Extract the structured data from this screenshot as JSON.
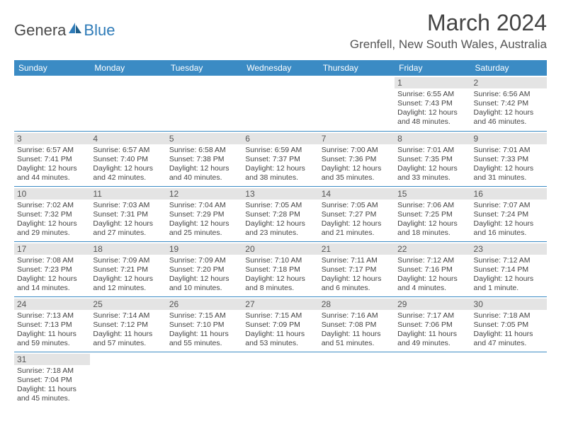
{
  "logo": {
    "text_general": "Genera",
    "text_blue": "Blue"
  },
  "title": "March 2024",
  "location": "Grenfell, New South Wales, Australia",
  "colors": {
    "header_bg": "#3b8bc4",
    "header_text": "#ffffff",
    "daynum_bg": "#e4e4e4",
    "row_border": "#3b8bc4",
    "logo_blue": "#2e7bb8"
  },
  "weekdays": [
    "Sunday",
    "Monday",
    "Tuesday",
    "Wednesday",
    "Thursday",
    "Friday",
    "Saturday"
  ],
  "weeks": [
    [
      null,
      null,
      null,
      null,
      null,
      {
        "n": "1",
        "sunrise": "Sunrise: 6:55 AM",
        "sunset": "Sunset: 7:43 PM",
        "daylight": "Daylight: 12 hours and 48 minutes."
      },
      {
        "n": "2",
        "sunrise": "Sunrise: 6:56 AM",
        "sunset": "Sunset: 7:42 PM",
        "daylight": "Daylight: 12 hours and 46 minutes."
      }
    ],
    [
      {
        "n": "3",
        "sunrise": "Sunrise: 6:57 AM",
        "sunset": "Sunset: 7:41 PM",
        "daylight": "Daylight: 12 hours and 44 minutes."
      },
      {
        "n": "4",
        "sunrise": "Sunrise: 6:57 AM",
        "sunset": "Sunset: 7:40 PM",
        "daylight": "Daylight: 12 hours and 42 minutes."
      },
      {
        "n": "5",
        "sunrise": "Sunrise: 6:58 AM",
        "sunset": "Sunset: 7:38 PM",
        "daylight": "Daylight: 12 hours and 40 minutes."
      },
      {
        "n": "6",
        "sunrise": "Sunrise: 6:59 AM",
        "sunset": "Sunset: 7:37 PM",
        "daylight": "Daylight: 12 hours and 38 minutes."
      },
      {
        "n": "7",
        "sunrise": "Sunrise: 7:00 AM",
        "sunset": "Sunset: 7:36 PM",
        "daylight": "Daylight: 12 hours and 35 minutes."
      },
      {
        "n": "8",
        "sunrise": "Sunrise: 7:01 AM",
        "sunset": "Sunset: 7:35 PM",
        "daylight": "Daylight: 12 hours and 33 minutes."
      },
      {
        "n": "9",
        "sunrise": "Sunrise: 7:01 AM",
        "sunset": "Sunset: 7:33 PM",
        "daylight": "Daylight: 12 hours and 31 minutes."
      }
    ],
    [
      {
        "n": "10",
        "sunrise": "Sunrise: 7:02 AM",
        "sunset": "Sunset: 7:32 PM",
        "daylight": "Daylight: 12 hours and 29 minutes."
      },
      {
        "n": "11",
        "sunrise": "Sunrise: 7:03 AM",
        "sunset": "Sunset: 7:31 PM",
        "daylight": "Daylight: 12 hours and 27 minutes."
      },
      {
        "n": "12",
        "sunrise": "Sunrise: 7:04 AM",
        "sunset": "Sunset: 7:29 PM",
        "daylight": "Daylight: 12 hours and 25 minutes."
      },
      {
        "n": "13",
        "sunrise": "Sunrise: 7:05 AM",
        "sunset": "Sunset: 7:28 PM",
        "daylight": "Daylight: 12 hours and 23 minutes."
      },
      {
        "n": "14",
        "sunrise": "Sunrise: 7:05 AM",
        "sunset": "Sunset: 7:27 PM",
        "daylight": "Daylight: 12 hours and 21 minutes."
      },
      {
        "n": "15",
        "sunrise": "Sunrise: 7:06 AM",
        "sunset": "Sunset: 7:25 PM",
        "daylight": "Daylight: 12 hours and 18 minutes."
      },
      {
        "n": "16",
        "sunrise": "Sunrise: 7:07 AM",
        "sunset": "Sunset: 7:24 PM",
        "daylight": "Daylight: 12 hours and 16 minutes."
      }
    ],
    [
      {
        "n": "17",
        "sunrise": "Sunrise: 7:08 AM",
        "sunset": "Sunset: 7:23 PM",
        "daylight": "Daylight: 12 hours and 14 minutes."
      },
      {
        "n": "18",
        "sunrise": "Sunrise: 7:09 AM",
        "sunset": "Sunset: 7:21 PM",
        "daylight": "Daylight: 12 hours and 12 minutes."
      },
      {
        "n": "19",
        "sunrise": "Sunrise: 7:09 AM",
        "sunset": "Sunset: 7:20 PM",
        "daylight": "Daylight: 12 hours and 10 minutes."
      },
      {
        "n": "20",
        "sunrise": "Sunrise: 7:10 AM",
        "sunset": "Sunset: 7:18 PM",
        "daylight": "Daylight: 12 hours and 8 minutes."
      },
      {
        "n": "21",
        "sunrise": "Sunrise: 7:11 AM",
        "sunset": "Sunset: 7:17 PM",
        "daylight": "Daylight: 12 hours and 6 minutes."
      },
      {
        "n": "22",
        "sunrise": "Sunrise: 7:12 AM",
        "sunset": "Sunset: 7:16 PM",
        "daylight": "Daylight: 12 hours and 4 minutes."
      },
      {
        "n": "23",
        "sunrise": "Sunrise: 7:12 AM",
        "sunset": "Sunset: 7:14 PM",
        "daylight": "Daylight: 12 hours and 1 minute."
      }
    ],
    [
      {
        "n": "24",
        "sunrise": "Sunrise: 7:13 AM",
        "sunset": "Sunset: 7:13 PM",
        "daylight": "Daylight: 11 hours and 59 minutes."
      },
      {
        "n": "25",
        "sunrise": "Sunrise: 7:14 AM",
        "sunset": "Sunset: 7:12 PM",
        "daylight": "Daylight: 11 hours and 57 minutes."
      },
      {
        "n": "26",
        "sunrise": "Sunrise: 7:15 AM",
        "sunset": "Sunset: 7:10 PM",
        "daylight": "Daylight: 11 hours and 55 minutes."
      },
      {
        "n": "27",
        "sunrise": "Sunrise: 7:15 AM",
        "sunset": "Sunset: 7:09 PM",
        "daylight": "Daylight: 11 hours and 53 minutes."
      },
      {
        "n": "28",
        "sunrise": "Sunrise: 7:16 AM",
        "sunset": "Sunset: 7:08 PM",
        "daylight": "Daylight: 11 hours and 51 minutes."
      },
      {
        "n": "29",
        "sunrise": "Sunrise: 7:17 AM",
        "sunset": "Sunset: 7:06 PM",
        "daylight": "Daylight: 11 hours and 49 minutes."
      },
      {
        "n": "30",
        "sunrise": "Sunrise: 7:18 AM",
        "sunset": "Sunset: 7:05 PM",
        "daylight": "Daylight: 11 hours and 47 minutes."
      }
    ],
    [
      {
        "n": "31",
        "sunrise": "Sunrise: 7:18 AM",
        "sunset": "Sunset: 7:04 PM",
        "daylight": "Daylight: 11 hours and 45 minutes."
      },
      null,
      null,
      null,
      null,
      null,
      null
    ]
  ]
}
